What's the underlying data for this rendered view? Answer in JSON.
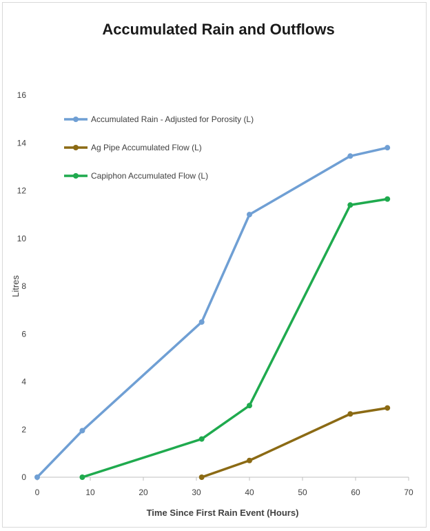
{
  "chart_data": {
    "type": "line",
    "title": "Accumulated Rain and Outflows",
    "xlabel": "Time Since First Rain Event (Hours)",
    "ylabel": "Litres",
    "xlim": [
      0,
      70
    ],
    "ylim": [
      0,
      16
    ],
    "xticks": [
      "0",
      "10",
      "20",
      "30",
      "40",
      "50",
      "60",
      "70"
    ],
    "yticks": [
      "0",
      "2",
      "4",
      "6",
      "8",
      "10",
      "12",
      "14",
      "16"
    ],
    "grid": false,
    "legend_position": "top-left",
    "series": [
      {
        "name": "Accumulated Rain - Adjusted for Porosity  (L)",
        "color": "#6f9fd4",
        "x": [
          0,
          8.5,
          31,
          40,
          59,
          66
        ],
        "y": [
          0,
          1.95,
          6.5,
          11.0,
          13.45,
          13.8
        ]
      },
      {
        "name": "Ag Pipe Accumulated Flow (L)",
        "color": "#8b6a14",
        "x": [
          31,
          40,
          59,
          66
        ],
        "y": [
          0,
          0.7,
          2.65,
          2.9
        ]
      },
      {
        "name": "Capiphon Accumulated Flow (L)",
        "color": "#1faa4e",
        "x": [
          8.5,
          31,
          40,
          59,
          66
        ],
        "y": [
          0,
          1.6,
          3.0,
          11.4,
          11.65
        ]
      }
    ]
  }
}
